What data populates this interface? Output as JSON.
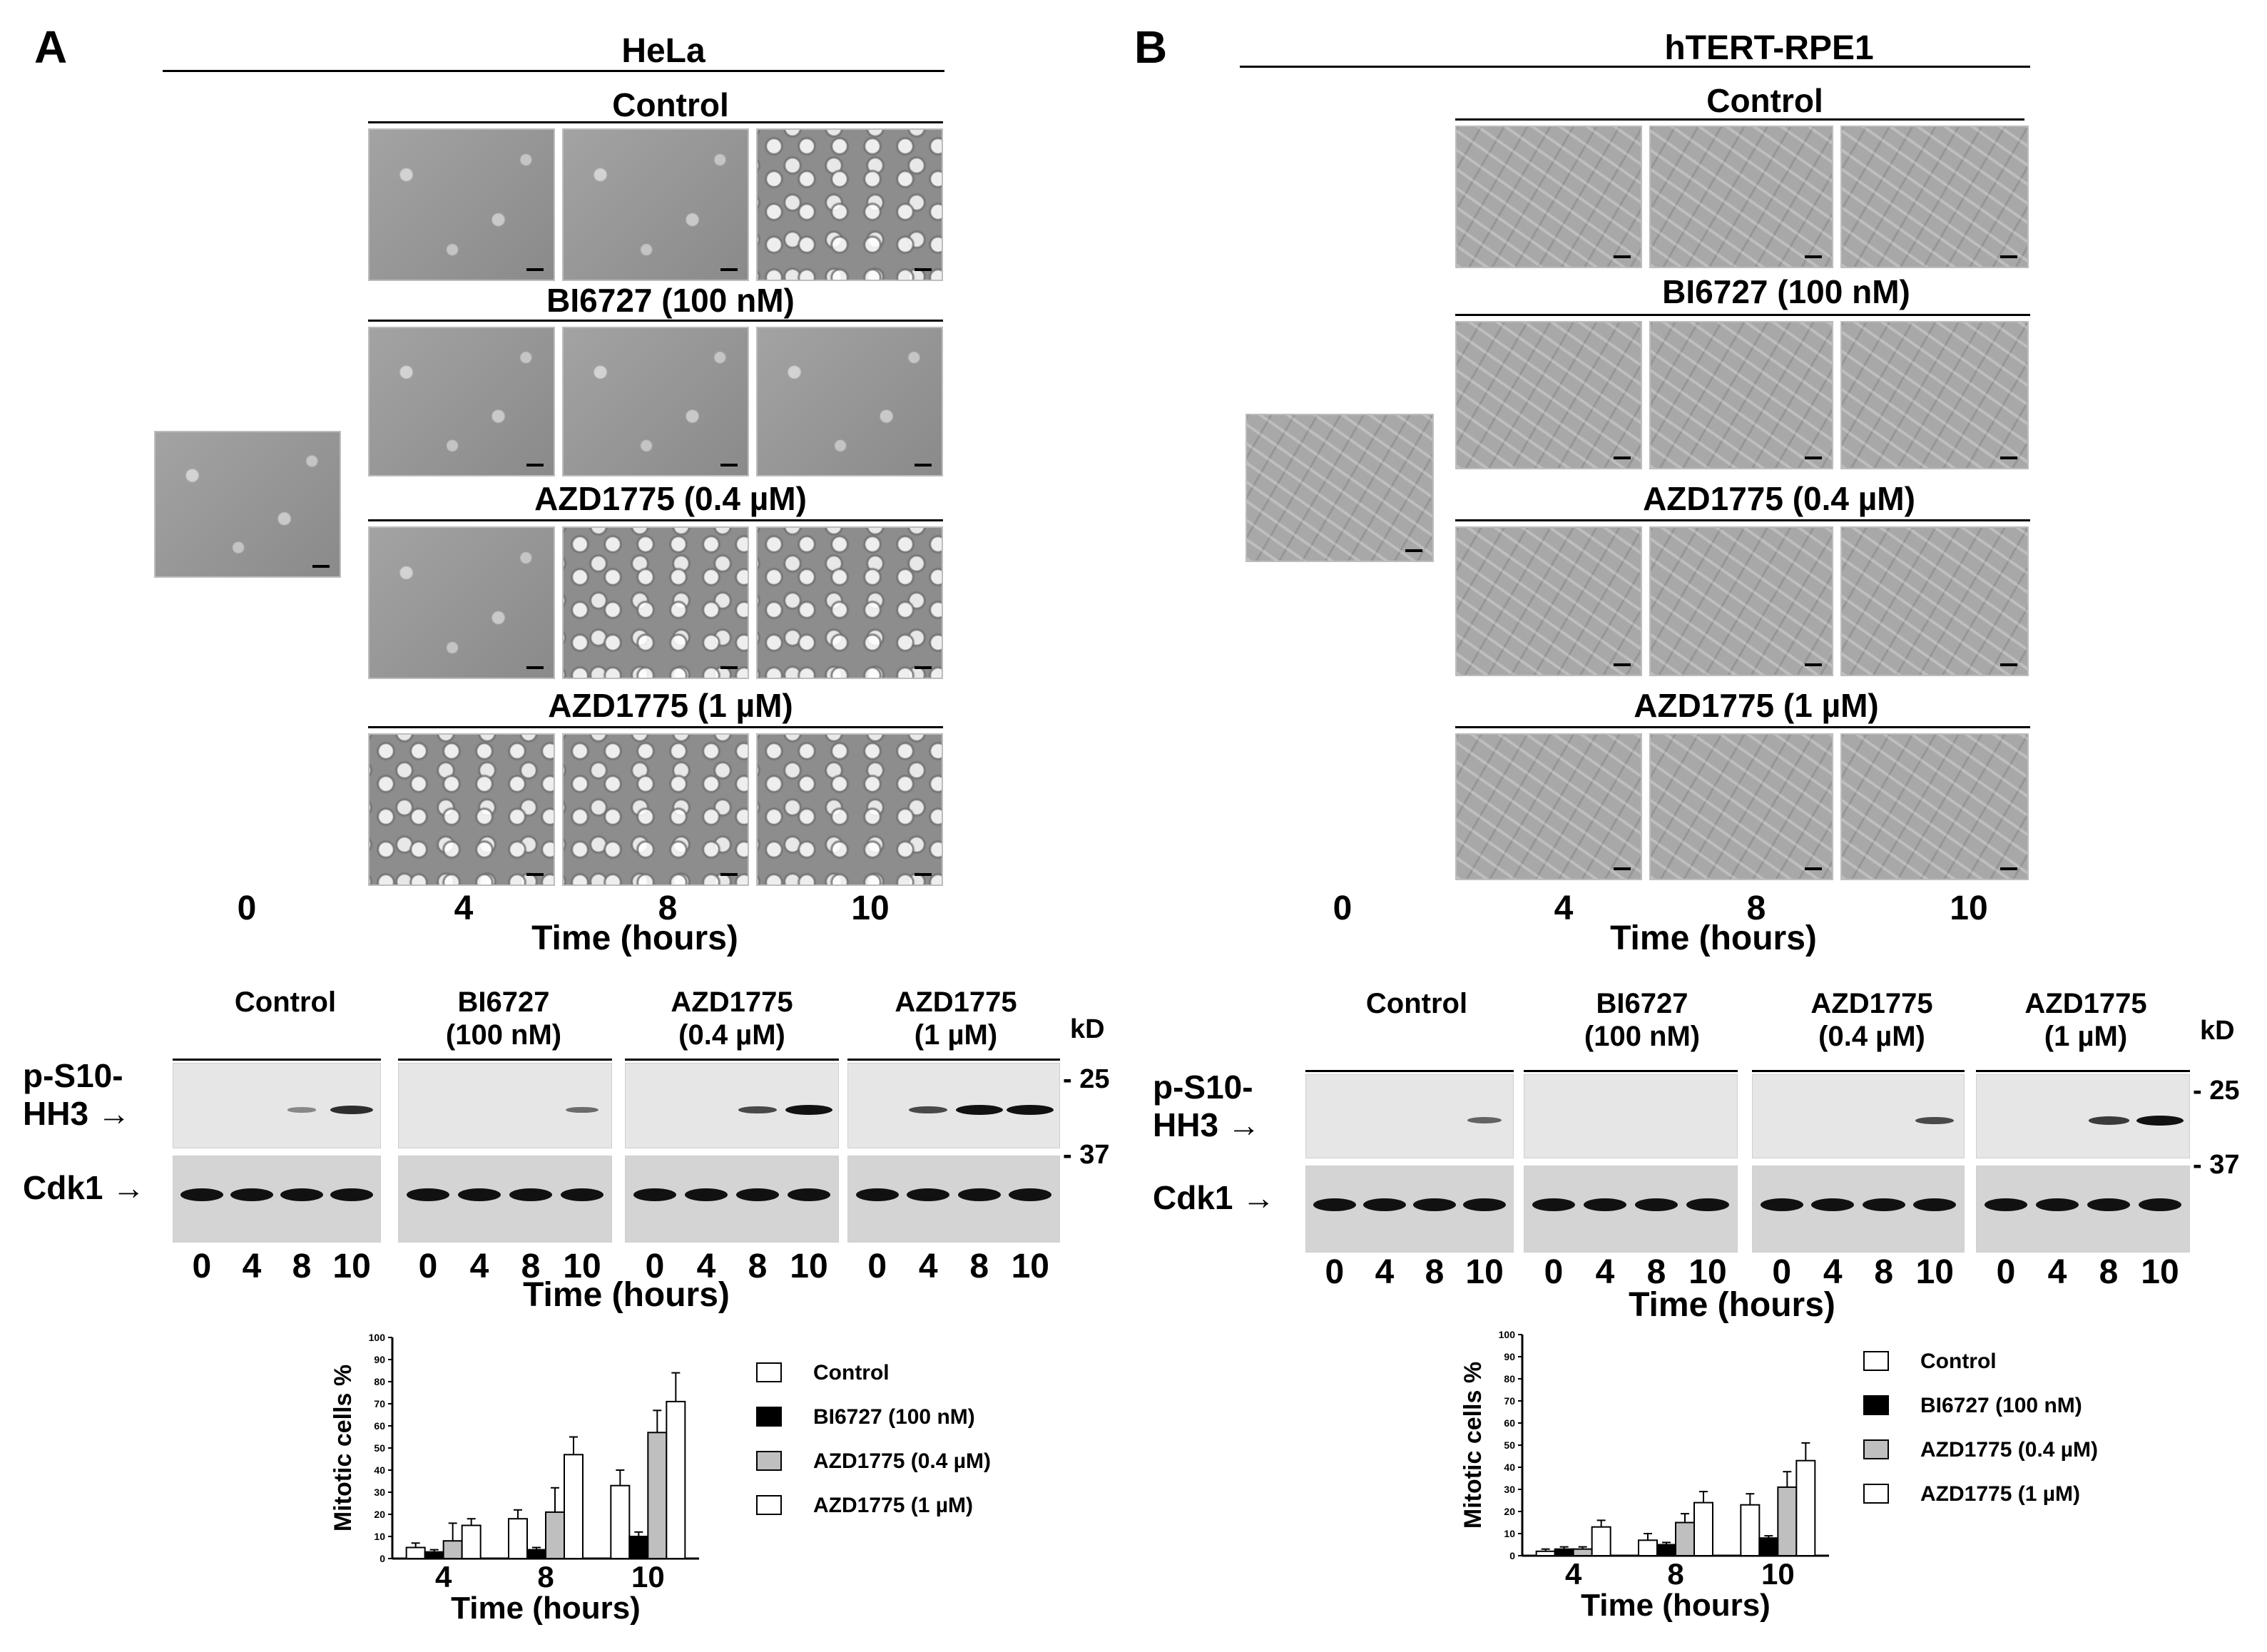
{
  "panels": [
    {
      "letter": "A",
      "cell_line": "HeLa",
      "conditions": [
        "Control",
        "BI6727 (100 nM)",
        "AZD1775 (0.4 µM)",
        "AZD1775 (1 µM)"
      ],
      "image_times": [
        "0",
        "4",
        "8",
        "10"
      ],
      "time_axis": "Time (hours)",
      "blot": {
        "groups": [
          "Control",
          "BI6727\n(100 nM)",
          "AZD1775\n(0.4 µM)",
          "AZD1775\n(1 µM)"
        ],
        "rows": [
          "p-S10-\nHH3",
          "Cdk1"
        ],
        "kd_title": "kD",
        "kd_markers": [
          "25",
          "37"
        ],
        "lane_labels": [
          "0",
          "4",
          "8",
          "10"
        ],
        "time_axis": "Time (hours)",
        "phh3_intensity": [
          [
            0,
            0,
            0.15,
            0.8
          ],
          [
            0,
            0,
            0,
            0.35
          ],
          [
            0,
            0,
            0.6,
            1
          ],
          [
            0,
            0.6,
            1,
            1
          ]
        ]
      }
    },
    {
      "letter": "B",
      "cell_line": "hTERT-RPE1",
      "conditions": [
        "Control",
        "BI6727 (100 nM)",
        "AZD1775 (0.4 µM)",
        "AZD1775 (1 µM)"
      ],
      "image_times": [
        "0",
        "4",
        "8",
        "10"
      ],
      "time_axis": "Time (hours)",
      "blot": {
        "groups": [
          "Control",
          "BI6727\n(100 nM)",
          "AZD1775\n(0.4 µM)",
          "AZD1775\n(1 µM)"
        ],
        "rows": [
          "p-S10-\nHH3",
          "Cdk1"
        ],
        "kd_title": "kD",
        "kd_markers": [
          "25",
          "37"
        ],
        "lane_labels": [
          "0",
          "4",
          "8",
          "10"
        ],
        "time_axis": "Time (hours)",
        "phh3_intensity": [
          [
            0,
            0,
            0,
            0.4
          ],
          [
            0,
            0,
            0,
            0
          ],
          [
            0,
            0,
            0,
            0.6
          ],
          [
            0,
            0,
            0.7,
            1
          ]
        ]
      }
    }
  ],
  "chart_data": [
    {
      "type": "bar",
      "ylabel": "Mitotic cells %",
      "xlabel": "Time (hours)",
      "categories": [
        "4",
        "8",
        "10"
      ],
      "ylim": [
        0,
        100
      ],
      "yticks": [
        "0",
        "10",
        "20",
        "30",
        "40",
        "50",
        "60",
        "70",
        "80",
        "90",
        "100"
      ],
      "series": [
        {
          "name": "Control",
          "values": [
            5,
            18,
            33
          ],
          "errors": [
            2,
            4,
            7
          ],
          "fill": "#ffffff"
        },
        {
          "name": "BI6727 (100 nM)",
          "values": [
            3,
            4,
            10
          ],
          "errors": [
            1,
            1,
            2
          ],
          "fill": "#000000"
        },
        {
          "name": "AZD1775 (0.4 µM)",
          "values": [
            8,
            21,
            57
          ],
          "errors": [
            8,
            11,
            10
          ],
          "fill": "#bfbfbf"
        },
        {
          "name": "AZD1775 (1 µM)",
          "values": [
            15,
            47,
            71
          ],
          "errors": [
            3,
            8,
            13
          ],
          "fill": "#ffffff"
        }
      ],
      "legend": "right"
    },
    {
      "type": "bar",
      "ylabel": "Mitotic cells %",
      "xlabel": "Time (hours)",
      "categories": [
        "4",
        "8",
        "10"
      ],
      "ylim": [
        0,
        100
      ],
      "yticks": [
        "0",
        "10",
        "20",
        "30",
        "40",
        "50",
        "60",
        "70",
        "80",
        "90",
        "100"
      ],
      "series": [
        {
          "name": "Control",
          "values": [
            2,
            7,
            23
          ],
          "errors": [
            1,
            3,
            5
          ],
          "fill": "#ffffff"
        },
        {
          "name": "BI6727 (100 nM)",
          "values": [
            3,
            5,
            8
          ],
          "errors": [
            1,
            1,
            1
          ],
          "fill": "#000000"
        },
        {
          "name": "AZD1775 (0.4 µM)",
          "values": [
            3,
            15,
            31
          ],
          "errors": [
            1,
            4,
            7
          ],
          "fill": "#bfbfbf"
        },
        {
          "name": "AZD1775 (1 µM)",
          "values": [
            13,
            24,
            43
          ],
          "errors": [
            3,
            5,
            8
          ],
          "fill": "#ffffff"
        }
      ],
      "legend": "right"
    }
  ]
}
